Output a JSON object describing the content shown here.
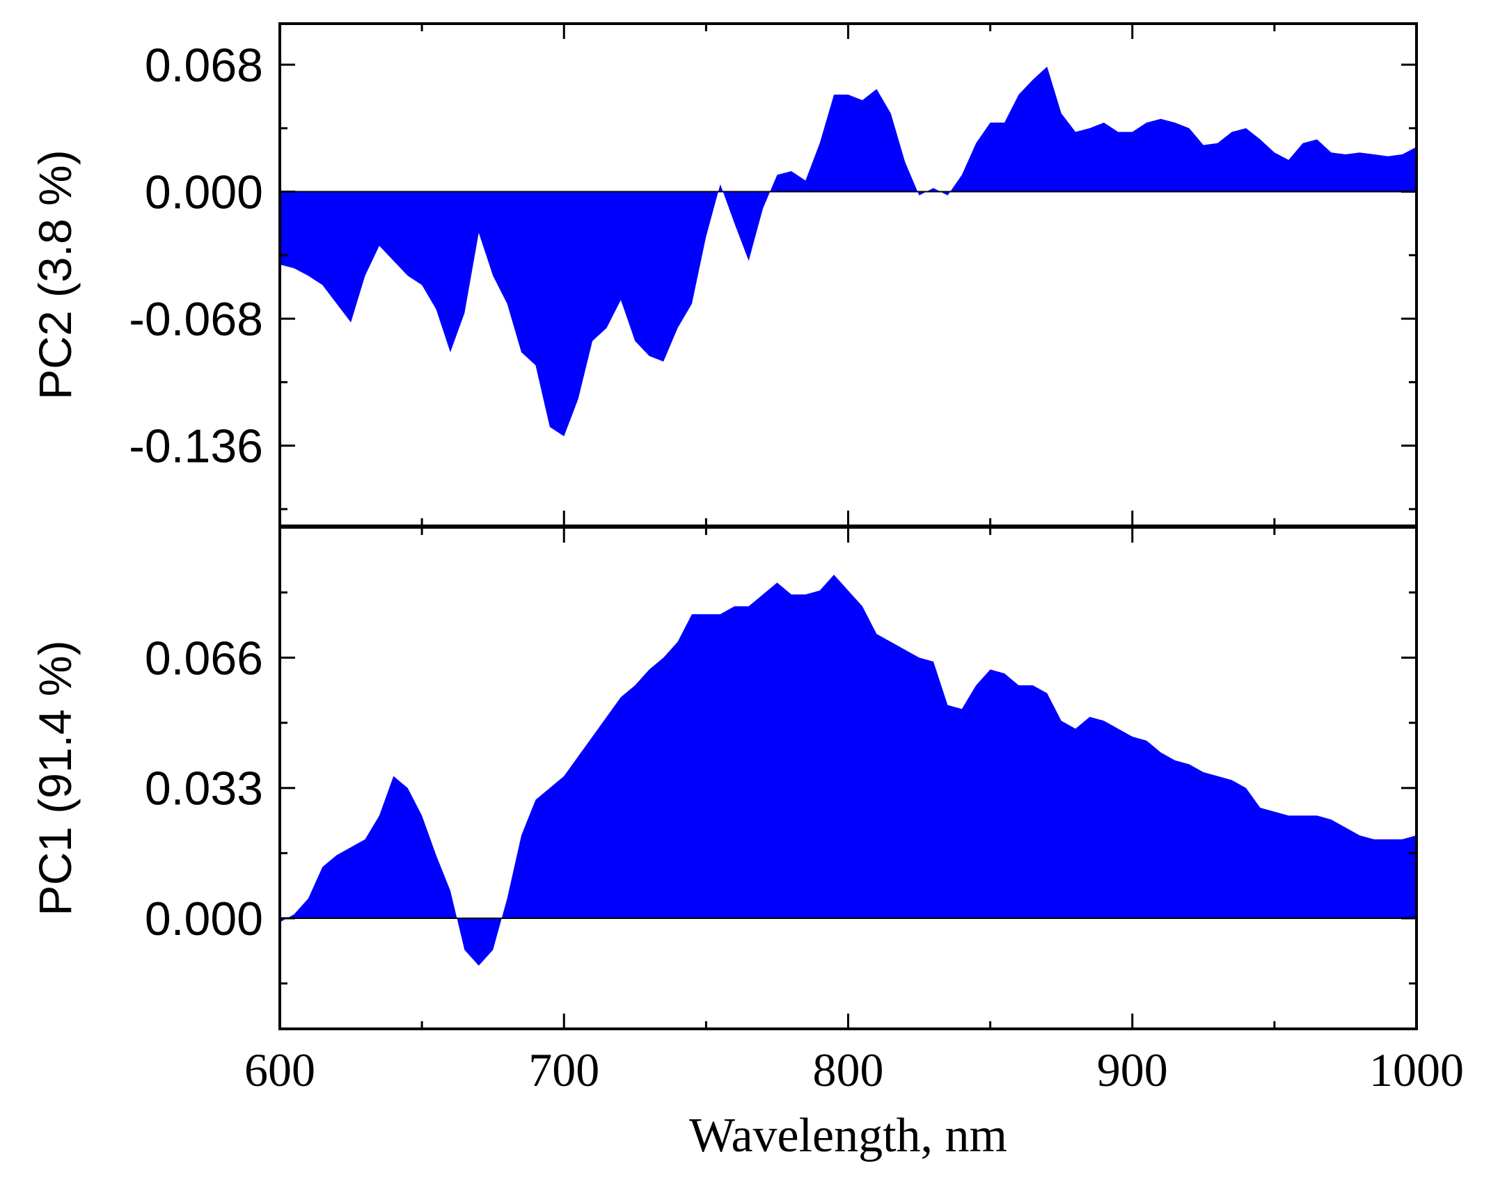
{
  "chart_data": [
    {
      "type": "area",
      "ylabel": "PC2 (3.8 %)",
      "color": "#0000ff",
      "x": [
        600,
        605,
        610,
        615,
        620,
        625,
        630,
        635,
        640,
        645,
        650,
        655,
        660,
        665,
        670,
        675,
        680,
        685,
        690,
        695,
        700,
        705,
        710,
        715,
        720,
        725,
        730,
        735,
        740,
        745,
        750,
        755,
        760,
        765,
        770,
        775,
        780,
        785,
        790,
        795,
        800,
        805,
        810,
        815,
        820,
        825,
        830,
        835,
        840,
        845,
        850,
        855,
        860,
        865,
        870,
        875,
        880,
        885,
        890,
        895,
        900,
        905,
        910,
        915,
        920,
        925,
        930,
        935,
        940,
        945,
        950,
        955,
        960,
        965,
        970,
        975,
        980,
        985,
        990,
        995,
        1000
      ],
      "values": [
        -0.039,
        -0.041,
        -0.045,
        -0.05,
        -0.06,
        -0.07,
        -0.045,
        -0.029,
        -0.037,
        -0.045,
        -0.05,
        -0.063,
        -0.086,
        -0.065,
        -0.022,
        -0.045,
        -0.06,
        -0.086,
        -0.093,
        -0.126,
        -0.131,
        -0.111,
        -0.08,
        -0.073,
        -0.058,
        -0.08,
        -0.088,
        -0.091,
        -0.073,
        -0.06,
        -0.024,
        0.004,
        -0.017,
        -0.037,
        -0.009,
        0.009,
        0.011,
        0.006,
        0.026,
        0.052,
        0.052,
        0.049,
        0.055,
        0.042,
        0.016,
        -0.002,
        0.002,
        -0.002,
        0.009,
        0.026,
        0.037,
        0.037,
        0.052,
        0.06,
        0.067,
        0.042,
        0.032,
        0.034,
        0.037,
        0.032,
        0.032,
        0.037,
        0.039,
        0.037,
        0.034,
        0.025,
        0.026,
        0.032,
        0.034,
        0.028,
        0.021,
        0.017,
        0.026,
        0.028,
        0.021,
        0.02,
        0.021,
        0.02,
        0.019,
        0.02,
        0.024
      ],
      "xlim": [
        600,
        1000
      ],
      "ylim": [
        -0.179,
        0.09
      ],
      "yticks": [
        0.068,
        {
          "value": 0,
          "label": "0.000"
        },
        -0.068,
        -0.136
      ]
    },
    {
      "type": "area",
      "ylabel": "PC1 (91.4 %)",
      "xlabel": "Wavelength, nm",
      "color": "#0000ff",
      "x": [
        600,
        605,
        610,
        615,
        620,
        625,
        630,
        635,
        640,
        645,
        650,
        655,
        660,
        665,
        670,
        675,
        680,
        685,
        690,
        695,
        700,
        705,
        710,
        715,
        720,
        725,
        730,
        735,
        740,
        745,
        750,
        755,
        760,
        765,
        770,
        775,
        780,
        785,
        790,
        795,
        800,
        805,
        810,
        815,
        820,
        825,
        830,
        835,
        840,
        845,
        850,
        855,
        860,
        865,
        870,
        875,
        880,
        885,
        890,
        895,
        900,
        905,
        910,
        915,
        920,
        925,
        930,
        935,
        940,
        945,
        950,
        955,
        960,
        965,
        970,
        975,
        980,
        985,
        990,
        995,
        1000
      ],
      "values": [
        -0.001,
        0.001,
        0.005,
        0.013,
        0.016,
        0.018,
        0.02,
        0.026,
        0.036,
        0.033,
        0.026,
        0.016,
        0.007,
        -0.008,
        -0.012,
        -0.008,
        0.005,
        0.021,
        0.03,
        0.033,
        0.036,
        0.041,
        0.046,
        0.051,
        0.056,
        0.059,
        0.063,
        0.066,
        0.07,
        0.077,
        0.077,
        0.077,
        0.079,
        0.079,
        0.082,
        0.085,
        0.082,
        0.082,
        0.083,
        0.087,
        0.083,
        0.079,
        0.072,
        0.07,
        0.068,
        0.066,
        0.065,
        0.054,
        0.053,
        0.059,
        0.063,
        0.062,
        0.059,
        0.059,
        0.057,
        0.05,
        0.048,
        0.051,
        0.05,
        0.048,
        0.046,
        0.045,
        0.042,
        0.04,
        0.039,
        0.037,
        0.036,
        0.035,
        0.033,
        0.028,
        0.027,
        0.026,
        0.026,
        0.026,
        0.025,
        0.023,
        0.021,
        0.02,
        0.02,
        0.02,
        0.021
      ],
      "xlim": [
        600,
        1000
      ],
      "ylim": [
        -0.028,
        0.099
      ],
      "xticks": [
        600,
        700,
        800,
        900,
        1000
      ],
      "yticks": [
        0.066,
        0.033,
        {
          "value": 0,
          "label": "0.000"
        }
      ]
    }
  ]
}
